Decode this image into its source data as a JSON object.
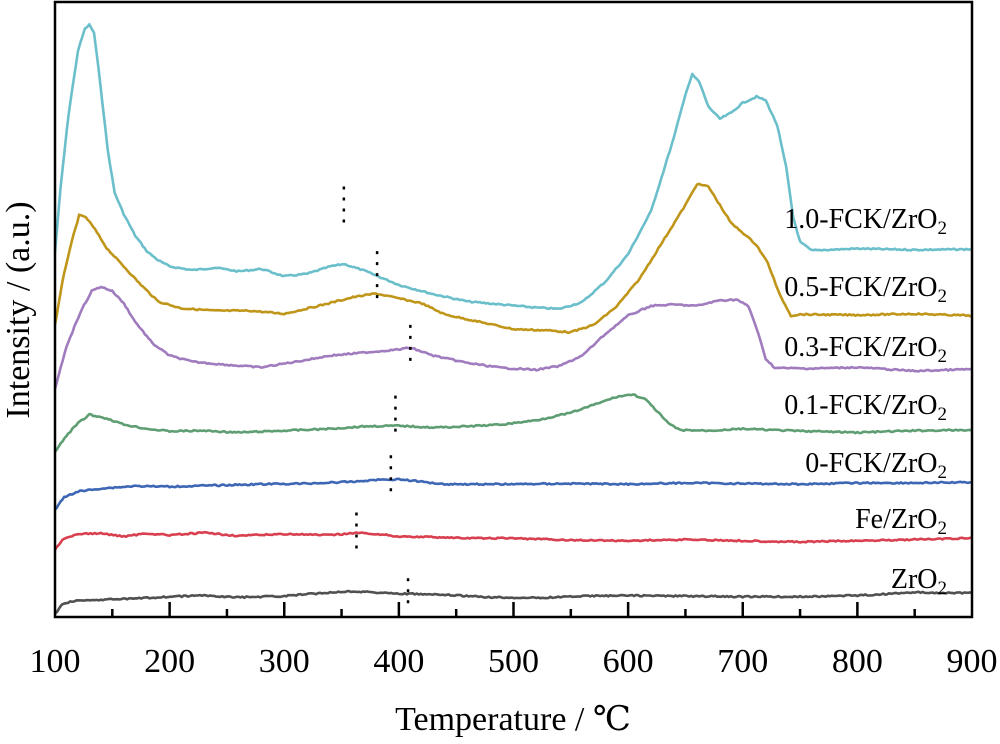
{
  "chart_data": {
    "type": "line",
    "title": "",
    "xlabel": "Temperature / ℃",
    "ylabel": "Intensity / (a.u.)",
    "xlim": [
      100,
      900
    ],
    "ylim": [
      0,
      100
    ],
    "xticks": [
      100,
      200,
      300,
      400,
      500,
      600,
      700,
      800,
      900
    ],
    "xticks_minor": [
      150,
      250,
      350,
      450,
      550,
      650,
      750,
      850
    ],
    "yticks": [],
    "grid": false,
    "legend": "inline labels at right end of each curve",
    "series": [
      {
        "name": "1.0-FCK/ZrO2",
        "label_main": "1.0-FCK/ZrO",
        "label_sub": "2",
        "color": "#6bbfcb",
        "marker_T": 352,
        "marker_range": [
          63,
          70
        ],
        "points": [
          [
            100,
            59.3
          ],
          [
            105,
            70
          ],
          [
            112,
            82
          ],
          [
            120,
            92
          ],
          [
            126,
            95.6
          ],
          [
            130,
            96.3
          ],
          [
            134,
            95
          ],
          [
            140,
            86
          ],
          [
            146,
            76
          ],
          [
            152,
            69
          ],
          [
            160,
            65.5
          ],
          [
            170,
            62
          ],
          [
            180,
            59.5
          ],
          [
            190,
            58
          ],
          [
            200,
            57
          ],
          [
            220,
            56.4
          ],
          [
            240,
            56.8
          ],
          [
            260,
            56.2
          ],
          [
            280,
            56.6
          ],
          [
            300,
            55.4
          ],
          [
            320,
            55.8
          ],
          [
            340,
            57
          ],
          [
            352,
            57.4
          ],
          [
            370,
            56.3
          ],
          [
            400,
            54
          ],
          [
            430,
            52.5
          ],
          [
            460,
            51.3
          ],
          [
            490,
            50.8
          ],
          [
            520,
            50.3
          ],
          [
            540,
            50.1
          ],
          [
            560,
            51.2
          ],
          [
            580,
            54.5
          ],
          [
            600,
            59
          ],
          [
            620,
            66
          ],
          [
            640,
            78
          ],
          [
            650,
            85
          ],
          [
            656,
            88.2
          ],
          [
            662,
            87
          ],
          [
            670,
            83
          ],
          [
            680,
            81
          ],
          [
            690,
            82
          ],
          [
            700,
            83.6
          ],
          [
            712,
            84.6
          ],
          [
            720,
            84
          ],
          [
            730,
            80
          ],
          [
            738,
            73
          ],
          [
            744,
            65
          ],
          [
            750,
            61
          ],
          [
            760,
            59.6
          ],
          [
            800,
            59.9
          ],
          [
            850,
            59.7
          ],
          [
            900,
            59.8
          ]
        ]
      },
      {
        "name": "0.5-FCK/ZrO2",
        "label_main": "0.5-FCK/ZrO",
        "label_sub": "2",
        "color": "#c0961a",
        "marker_T": 381,
        "marker_range": [
          51.5,
          59.5
        ],
        "points": [
          [
            100,
            47.5
          ],
          [
            108,
            56
          ],
          [
            116,
            62
          ],
          [
            121,
            65.3
          ],
          [
            127,
            65
          ],
          [
            135,
            63
          ],
          [
            145,
            60
          ],
          [
            160,
            57
          ],
          [
            175,
            54
          ],
          [
            190,
            51.3
          ],
          [
            210,
            50.2
          ],
          [
            240,
            49.8
          ],
          [
            270,
            49.8
          ],
          [
            300,
            49.3
          ],
          [
            330,
            50.6
          ],
          [
            360,
            52
          ],
          [
            380,
            52.6
          ],
          [
            400,
            51.8
          ],
          [
            420,
            51
          ],
          [
            440,
            49.2
          ],
          [
            470,
            48
          ],
          [
            500,
            46.8
          ],
          [
            530,
            46.6
          ],
          [
            550,
            46.3
          ],
          [
            570,
            47.5
          ],
          [
            590,
            50.5
          ],
          [
            610,
            55
          ],
          [
            630,
            61
          ],
          [
            650,
            67
          ],
          [
            660,
            70.4
          ],
          [
            670,
            70
          ],
          [
            680,
            67
          ],
          [
            690,
            64
          ],
          [
            700,
            62.5
          ],
          [
            712,
            60.5
          ],
          [
            722,
            57.5
          ],
          [
            732,
            52.5
          ],
          [
            742,
            49
          ],
          [
            750,
            49.2
          ],
          [
            800,
            49.1
          ],
          [
            850,
            49.3
          ],
          [
            900,
            49
          ]
        ]
      },
      {
        "name": "0.3-FCK/ZrO2",
        "label_main": "0.3-FCK/ZrO",
        "label_sub": "2",
        "color": "#a07cbf",
        "marker_T": 410,
        "marker_range": [
          40.5,
          47.5
        ],
        "points": [
          [
            100,
            37
          ],
          [
            110,
            44
          ],
          [
            122,
            49.5
          ],
          [
            132,
            53
          ],
          [
            140,
            53.7
          ],
          [
            150,
            53
          ],
          [
            160,
            51
          ],
          [
            170,
            48
          ],
          [
            185,
            44.5
          ],
          [
            200,
            42.5
          ],
          [
            220,
            41.5
          ],
          [
            250,
            41
          ],
          [
            280,
            40.6
          ],
          [
            310,
            41.5
          ],
          [
            340,
            42.5
          ],
          [
            370,
            43
          ],
          [
            400,
            43.5
          ],
          [
            410,
            43.8
          ],
          [
            430,
            42.5
          ],
          [
            460,
            41.3
          ],
          [
            490,
            40.5
          ],
          [
            520,
            40.2
          ],
          [
            540,
            40.8
          ],
          [
            560,
            42.5
          ],
          [
            580,
            46
          ],
          [
            600,
            49
          ],
          [
            620,
            50.6
          ],
          [
            640,
            50.8
          ],
          [
            660,
            50.6
          ],
          [
            680,
            51.5
          ],
          [
            695,
            51.6
          ],
          [
            705,
            50.5
          ],
          [
            712,
            47
          ],
          [
            720,
            42
          ],
          [
            728,
            40.5
          ],
          [
            760,
            40.4
          ],
          [
            800,
            40.6
          ],
          [
            850,
            40
          ],
          [
            900,
            40.3
          ]
        ]
      },
      {
        "name": "0.1-FCK/ZrO2",
        "label_main": "0.1-FCK/ZrO",
        "label_sub": "2",
        "color": "#5e9e72",
        "marker_T": 397,
        "marker_range": [
          29.5,
          36
        ],
        "points": [
          [
            100,
            26.8
          ],
          [
            110,
            29.5
          ],
          [
            120,
            31.5
          ],
          [
            130,
            32.9
          ],
          [
            145,
            32.3
          ],
          [
            160,
            31.3
          ],
          [
            180,
            30.6
          ],
          [
            200,
            30.2
          ],
          [
            230,
            30.3
          ],
          [
            260,
            30
          ],
          [
            300,
            30.3
          ],
          [
            340,
            30.6
          ],
          [
            370,
            31
          ],
          [
            400,
            31.1
          ],
          [
            430,
            30.8
          ],
          [
            460,
            31
          ],
          [
            490,
            31.3
          ],
          [
            520,
            32
          ],
          [
            550,
            33.2
          ],
          [
            570,
            34.5
          ],
          [
            590,
            35.8
          ],
          [
            604,
            36.2
          ],
          [
            615,
            35.4
          ],
          [
            625,
            33.5
          ],
          [
            635,
            31.5
          ],
          [
            645,
            30.4
          ],
          [
            670,
            30.3
          ],
          [
            700,
            30.6
          ],
          [
            740,
            30.3
          ],
          [
            800,
            30
          ],
          [
            850,
            30.3
          ],
          [
            900,
            30.4
          ]
        ]
      },
      {
        "name": "0-FCK/ZrO2",
        "label_main": "0-FCK/ZrO",
        "label_sub": "2",
        "color": "#3d66b4",
        "marker_T": 393,
        "marker_range": [
          19.8,
          26.3
        ],
        "points": [
          [
            100,
            17.4
          ],
          [
            108,
            19.5
          ],
          [
            120,
            20.4
          ],
          [
            140,
            20.9
          ],
          [
            170,
            21.3
          ],
          [
            200,
            21.2
          ],
          [
            240,
            21.4
          ],
          [
            280,
            21.6
          ],
          [
            320,
            21.7
          ],
          [
            360,
            22
          ],
          [
            380,
            22.3
          ],
          [
            400,
            22.4
          ],
          [
            420,
            22
          ],
          [
            440,
            21.6
          ],
          [
            470,
            21.6
          ],
          [
            500,
            21.6
          ],
          [
            550,
            21.7
          ],
          [
            600,
            21.6
          ],
          [
            650,
            21.8
          ],
          [
            700,
            21.7
          ],
          [
            750,
            21.6
          ],
          [
            800,
            21.8
          ],
          [
            850,
            21.8
          ],
          [
            900,
            21.9
          ]
        ]
      },
      {
        "name": "Fe/ZrO2",
        "label_main": "Fe/ZrO",
        "label_sub": "2",
        "color": "#d8404f",
        "marker_T": 363,
        "marker_range": [
          10.5,
          17
        ],
        "points": [
          [
            100,
            11
          ],
          [
            108,
            12.8
          ],
          [
            120,
            13.5
          ],
          [
            140,
            13.6
          ],
          [
            160,
            13.1
          ],
          [
            180,
            13.6
          ],
          [
            200,
            13.3
          ],
          [
            230,
            13.7
          ],
          [
            260,
            13.2
          ],
          [
            300,
            13.5
          ],
          [
            340,
            13.3
          ],
          [
            363,
            13.7
          ],
          [
            380,
            13.5
          ],
          [
            400,
            13.1
          ],
          [
            430,
            13
          ],
          [
            460,
            12.8
          ],
          [
            500,
            12.8
          ],
          [
            550,
            12.5
          ],
          [
            600,
            12.4
          ],
          [
            650,
            12.6
          ],
          [
            700,
            12.4
          ],
          [
            750,
            12.2
          ],
          [
            800,
            12.4
          ],
          [
            850,
            12.6
          ],
          [
            900,
            12.8
          ]
        ]
      },
      {
        "name": "ZrO2",
        "label_main": "ZrO",
        "label_sub": "2",
        "color": "#505050",
        "marker_T": 408,
        "marker_range": [
          2.2,
          6.3
        ],
        "points": [
          [
            100,
            0.5
          ],
          [
            106,
            2
          ],
          [
            115,
            2.6
          ],
          [
            140,
            2.8
          ],
          [
            170,
            3
          ],
          [
            200,
            3.3
          ],
          [
            230,
            3.5
          ],
          [
            260,
            3.2
          ],
          [
            300,
            3.4
          ],
          [
            340,
            4
          ],
          [
            360,
            4.2
          ],
          [
            400,
            3.8
          ],
          [
            440,
            3.6
          ],
          [
            480,
            3.2
          ],
          [
            520,
            3.1
          ],
          [
            560,
            3.4
          ],
          [
            600,
            3.5
          ],
          [
            650,
            3.4
          ],
          [
            700,
            3.3
          ],
          [
            750,
            3.3
          ],
          [
            800,
            3.5
          ],
          [
            850,
            4
          ],
          [
            900,
            3.9
          ]
        ]
      }
    ]
  }
}
